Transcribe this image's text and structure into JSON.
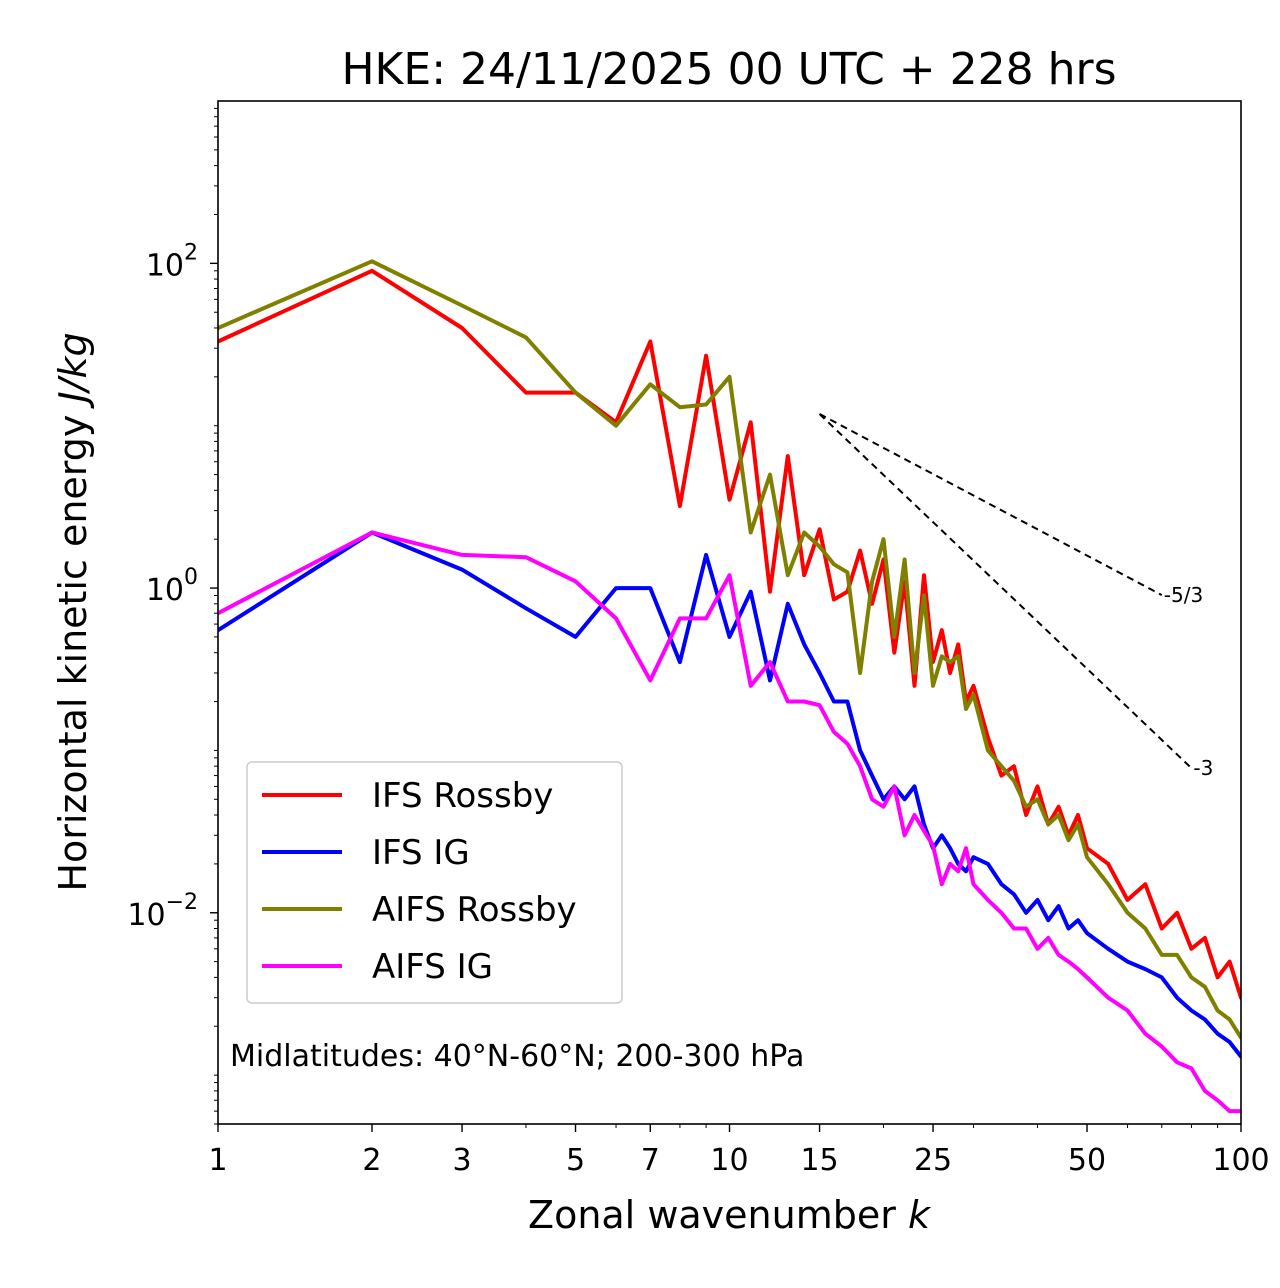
{
  "chart_data": {
    "type": "line",
    "title": "HKE: 24/11/2025 00 UTC + 228 hrs",
    "xlabel": "Zonal wavenumber",
    "xlabel_var": "k",
    "ylabel": "Horizontal kinetic energy",
    "ylabel_units": "J/kg",
    "xscale": "log",
    "yscale": "log",
    "xlim": [
      1,
      100
    ],
    "ylim": [
      0.0005,
      1000
    ],
    "x_ticks": [
      {
        "value": 1,
        "label": "1"
      },
      {
        "value": 2,
        "label": "2"
      },
      {
        "value": 3,
        "label": "3"
      },
      {
        "value": 5,
        "label": "5"
      },
      {
        "value": 7,
        "label": "7"
      },
      {
        "value": 10,
        "label": "10"
      },
      {
        "value": 15,
        "label": "15"
      },
      {
        "value": 25,
        "label": "25"
      },
      {
        "value": 50,
        "label": "50"
      },
      {
        "value": 100,
        "label": "100"
      }
    ],
    "y_ticks": [
      {
        "value": 100,
        "base": "10",
        "exp": "2"
      },
      {
        "value": 1,
        "base": "10",
        "exp": "0"
      },
      {
        "value": 0.01,
        "base": "10",
        "exp": "−2"
      }
    ],
    "annotation": "Midlatitudes: 40°N-60°N; 200-300 hPa",
    "legend_position": "lower-left",
    "reference_slopes": [
      {
        "label": "-5/3",
        "slope": -1.6667,
        "x_start": 15,
        "y_start": 11.8,
        "x_end": 70
      },
      {
        "label": "-3",
        "slope": -3,
        "x_start": 15,
        "y_start": 11.8,
        "x_end": 80
      }
    ],
    "series": [
      {
        "name": "IFS Rossby",
        "color": "#ff0000",
        "x": [
          1,
          2,
          3,
          4,
          5,
          6,
          7,
          8,
          9,
          10,
          11,
          12,
          13,
          14,
          15,
          16,
          17,
          18,
          19,
          20,
          21,
          22,
          23,
          24,
          25,
          26,
          27,
          28,
          29,
          30,
          32,
          34,
          36,
          38,
          40,
          42,
          44,
          46,
          48,
          50,
          55,
          60,
          65,
          70,
          75,
          80,
          85,
          90,
          95,
          100
        ],
        "y": [
          33,
          90,
          40,
          16,
          16,
          10.5,
          33,
          3.2,
          27,
          3.5,
          10.5,
          0.95,
          6.5,
          1.2,
          2.3,
          0.85,
          0.95,
          1.7,
          0.8,
          1.5,
          0.4,
          1.1,
          0.25,
          1.2,
          0.35,
          0.55,
          0.3,
          0.45,
          0.2,
          0.25,
          0.12,
          0.07,
          0.08,
          0.04,
          0.06,
          0.035,
          0.045,
          0.03,
          0.04,
          0.025,
          0.02,
          0.012,
          0.015,
          0.008,
          0.01,
          0.006,
          0.007,
          0.004,
          0.005,
          0.003
        ]
      },
      {
        "name": "IFS IG",
        "color": "#0000ff",
        "x": [
          1,
          2,
          3,
          4,
          5,
          6,
          7,
          8,
          9,
          10,
          11,
          12,
          13,
          14,
          15,
          16,
          17,
          18,
          19,
          20,
          21,
          22,
          23,
          24,
          25,
          26,
          27,
          28,
          29,
          30,
          32,
          34,
          36,
          38,
          40,
          42,
          44,
          46,
          48,
          50,
          55,
          60,
          65,
          70,
          75,
          80,
          85,
          90,
          95,
          100
        ],
        "y": [
          0.55,
          2.2,
          1.3,
          0.75,
          0.5,
          1.0,
          1.0,
          0.35,
          1.6,
          0.5,
          0.95,
          0.27,
          0.8,
          0.45,
          0.3,
          0.2,
          0.2,
          0.1,
          0.07,
          0.05,
          0.06,
          0.05,
          0.06,
          0.035,
          0.025,
          0.03,
          0.025,
          0.02,
          0.018,
          0.022,
          0.02,
          0.015,
          0.013,
          0.01,
          0.012,
          0.009,
          0.011,
          0.008,
          0.009,
          0.0075,
          0.006,
          0.005,
          0.0045,
          0.004,
          0.003,
          0.0025,
          0.0022,
          0.0018,
          0.0016,
          0.0013
        ]
      },
      {
        "name": "AIFS Rossby",
        "color": "#808000",
        "x": [
          1,
          2,
          3,
          4,
          5,
          6,
          7,
          8,
          9,
          10,
          11,
          12,
          13,
          14,
          15,
          16,
          17,
          18,
          19,
          20,
          21,
          22,
          23,
          24,
          25,
          26,
          27,
          28,
          29,
          30,
          32,
          34,
          36,
          38,
          40,
          42,
          44,
          46,
          48,
          50,
          55,
          60,
          65,
          70,
          75,
          80,
          85,
          90,
          95,
          100
        ],
        "y": [
          40,
          103,
          55,
          35,
          16,
          10,
          18,
          13,
          13.5,
          20,
          2.2,
          5,
          1.2,
          2.2,
          1.8,
          1.4,
          1.25,
          0.3,
          1.1,
          2.0,
          0.5,
          1.5,
          0.3,
          0.9,
          0.25,
          0.38,
          0.35,
          0.38,
          0.18,
          0.22,
          0.1,
          0.08,
          0.065,
          0.045,
          0.05,
          0.035,
          0.04,
          0.028,
          0.035,
          0.022,
          0.015,
          0.01,
          0.008,
          0.0055,
          0.0055,
          0.004,
          0.0035,
          0.0025,
          0.0022,
          0.0017
        ]
      },
      {
        "name": "AIFS IG",
        "color": "#ff00ff",
        "x": [
          1,
          2,
          3,
          4,
          5,
          6,
          7,
          8,
          9,
          10,
          11,
          12,
          13,
          14,
          15,
          16,
          17,
          18,
          19,
          20,
          21,
          22,
          23,
          24,
          25,
          26,
          27,
          28,
          29,
          30,
          32,
          34,
          36,
          38,
          40,
          42,
          44,
          46,
          48,
          50,
          55,
          60,
          65,
          70,
          75,
          80,
          85,
          90,
          95,
          100
        ],
        "y": [
          0.7,
          2.2,
          1.6,
          1.55,
          1.1,
          0.65,
          0.27,
          0.65,
          0.65,
          1.2,
          0.25,
          0.35,
          0.2,
          0.2,
          0.19,
          0.13,
          0.11,
          0.08,
          0.05,
          0.045,
          0.06,
          0.03,
          0.04,
          0.032,
          0.026,
          0.015,
          0.02,
          0.018,
          0.025,
          0.015,
          0.012,
          0.01,
          0.008,
          0.008,
          0.006,
          0.007,
          0.0055,
          0.005,
          0.0045,
          0.004,
          0.003,
          0.0025,
          0.0018,
          0.0015,
          0.0012,
          0.0011,
          0.0008,
          0.0007,
          0.0006,
          0.0006
        ]
      }
    ]
  }
}
